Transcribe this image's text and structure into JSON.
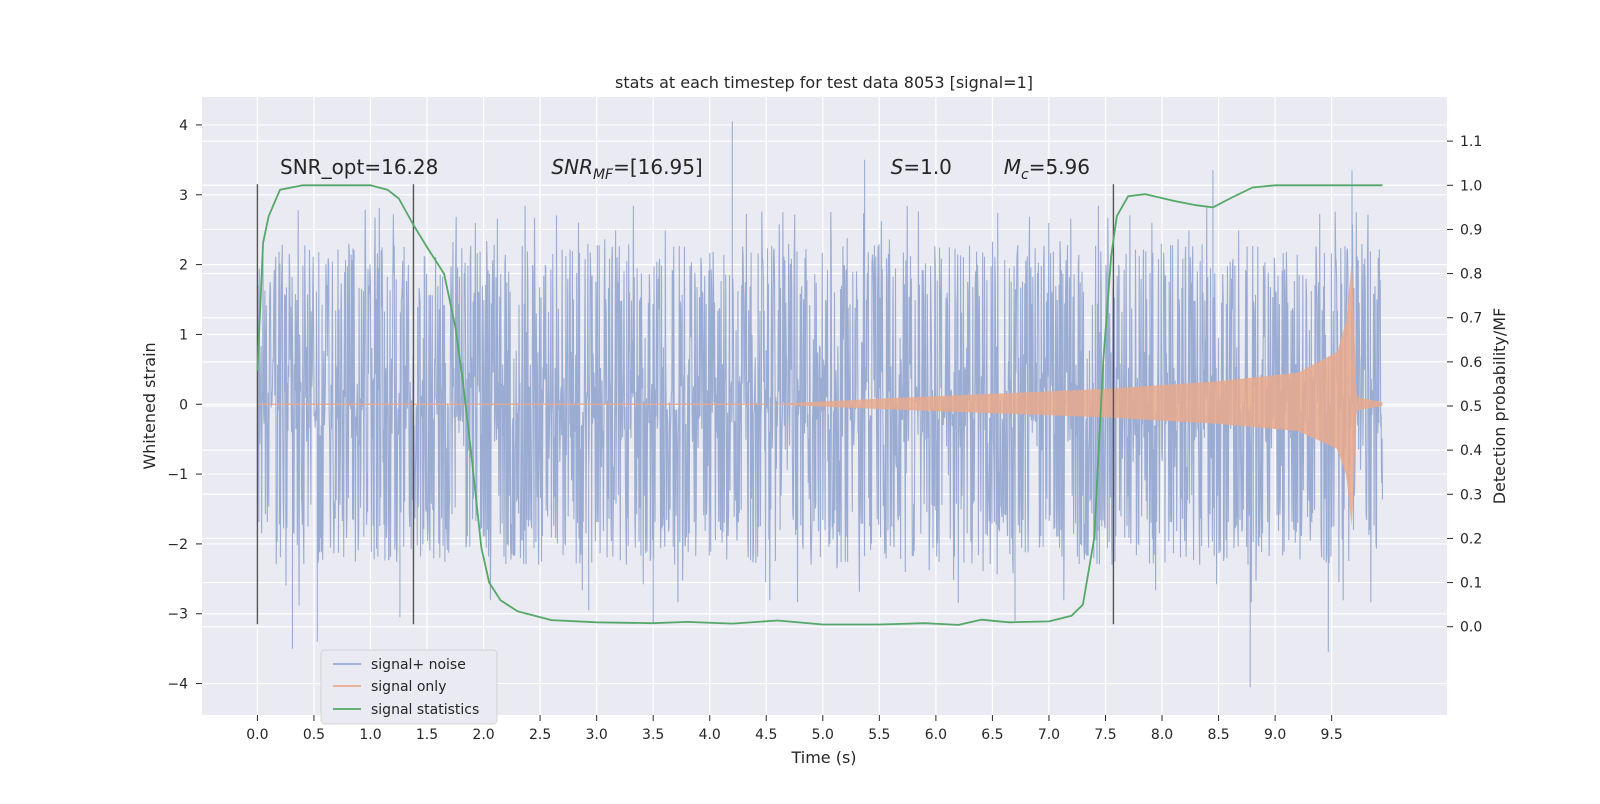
{
  "chart_data": {
    "type": "line",
    "title": "stats at each timestep for test data 8053 [signal=1]",
    "xlabel": "Time (s)",
    "ylabel_left": "Whitened strain",
    "ylabel_right": "Detection probability/MF",
    "xlim": [
      -0.49,
      10.52
    ],
    "ylim_left": [
      -4.45,
      4.4
    ],
    "ylim_right": [
      -0.2,
      1.2
    ],
    "xticks": [
      "0.0",
      "0.5",
      "1.0",
      "1.5",
      "2.0",
      "2.5",
      "3.0",
      "3.5",
      "4.0",
      "4.5",
      "5.0",
      "5.5",
      "6.0",
      "6.5",
      "7.0",
      "7.5",
      "8.0",
      "8.5",
      "9.0",
      "9.5"
    ],
    "yticks_left": [
      "4",
      "3",
      "2",
      "1",
      "0",
      "−1",
      "−2",
      "−3",
      "−4"
    ],
    "yticks_right": [
      "1.1",
      "1.0",
      "0.9",
      "0.8",
      "0.7",
      "0.6",
      "0.5",
      "0.4",
      "0.3",
      "0.2",
      "0.1",
      "0.0"
    ],
    "grid": true,
    "legend_position": "lower-left",
    "annotations": [
      {
        "text": "SNR_opt=16.28",
        "x": 0.2
      },
      {
        "text": "SNR",
        "sub": "MF",
        "rest": "=[16.95]",
        "italic": true,
        "x": 2.6
      },
      {
        "text": "S",
        "rest": "=1.0",
        "italic": true,
        "x": 5.6
      },
      {
        "text": "M",
        "sub": "c",
        "rest": "=5.96",
        "italic": true,
        "x": 6.6
      }
    ],
    "annotation_y": 3.3,
    "vlines_x": [
      0.0,
      1.38,
      7.57
    ],
    "vline_range": [
      -3.15,
      3.15
    ],
    "series": [
      {
        "name": "signal+ noise",
        "color": "#97a9d1",
        "x_range": [
          0.0,
          9.95
        ],
        "envelope_typical": [
          -1.6,
          1.5
        ],
        "extremes": [
          {
            "x": 0.31,
            "y": -3.5
          },
          {
            "x": 0.53,
            "y": -3.4
          },
          {
            "x": 1.26,
            "y": -3.05
          },
          {
            "x": 2.93,
            "y": -2.95
          },
          {
            "x": 3.5,
            "y": -3.15
          },
          {
            "x": 4.2,
            "y": 4.05
          },
          {
            "x": 5.37,
            "y": 3.5
          },
          {
            "x": 6.7,
            "y": -3.1
          },
          {
            "x": 8.45,
            "y": 3.35
          },
          {
            "x": 8.78,
            "y": -4.05
          },
          {
            "x": 9.47,
            "y": -3.55
          },
          {
            "x": 9.68,
            "y": 3.35
          }
        ]
      },
      {
        "name": "signal only",
        "color": "#e9a98c",
        "chirp_start": 4.5,
        "merger_time": 9.68,
        "envelope": [
          [
            4.5,
            0.0
          ],
          [
            5.5,
            0.08
          ],
          [
            6.5,
            0.15
          ],
          [
            7.5,
            0.22
          ],
          [
            8.5,
            0.33
          ],
          [
            9.2,
            0.45
          ],
          [
            9.55,
            0.75
          ],
          [
            9.63,
            1.2
          ],
          [
            9.68,
            2.1
          ],
          [
            9.72,
            0.1
          ],
          [
            9.95,
            0.03
          ]
        ]
      },
      {
        "name": "signal statistics",
        "color": "#55a868",
        "x": [
          0.0,
          0.05,
          0.1,
          0.2,
          0.4,
          0.8,
          1.0,
          1.15,
          1.25,
          1.38,
          1.5,
          1.65,
          1.75,
          1.82,
          1.9,
          1.98,
          2.05,
          2.15,
          2.3,
          2.6,
          3.0,
          3.5,
          3.8,
          4.2,
          4.6,
          5.0,
          5.5,
          5.9,
          6.2,
          6.4,
          6.65,
          7.0,
          7.2,
          7.3,
          7.4,
          7.48,
          7.55,
          7.6,
          7.7,
          7.85,
          8.1,
          8.3,
          8.45,
          8.6,
          8.8,
          9.0,
          9.95
        ],
        "y": [
          0.58,
          0.87,
          0.93,
          0.99,
          1.0,
          1.0,
          1.0,
          0.99,
          0.97,
          0.91,
          0.86,
          0.8,
          0.68,
          0.55,
          0.37,
          0.18,
          0.1,
          0.06,
          0.035,
          0.015,
          0.01,
          0.008,
          0.011,
          0.007,
          0.014,
          0.005,
          0.005,
          0.008,
          0.004,
          0.016,
          0.01,
          0.012,
          0.025,
          0.05,
          0.2,
          0.6,
          0.84,
          0.93,
          0.975,
          0.98,
          0.965,
          0.955,
          0.95,
          0.97,
          0.995,
          1.0,
          1.0
        ]
      }
    ]
  }
}
